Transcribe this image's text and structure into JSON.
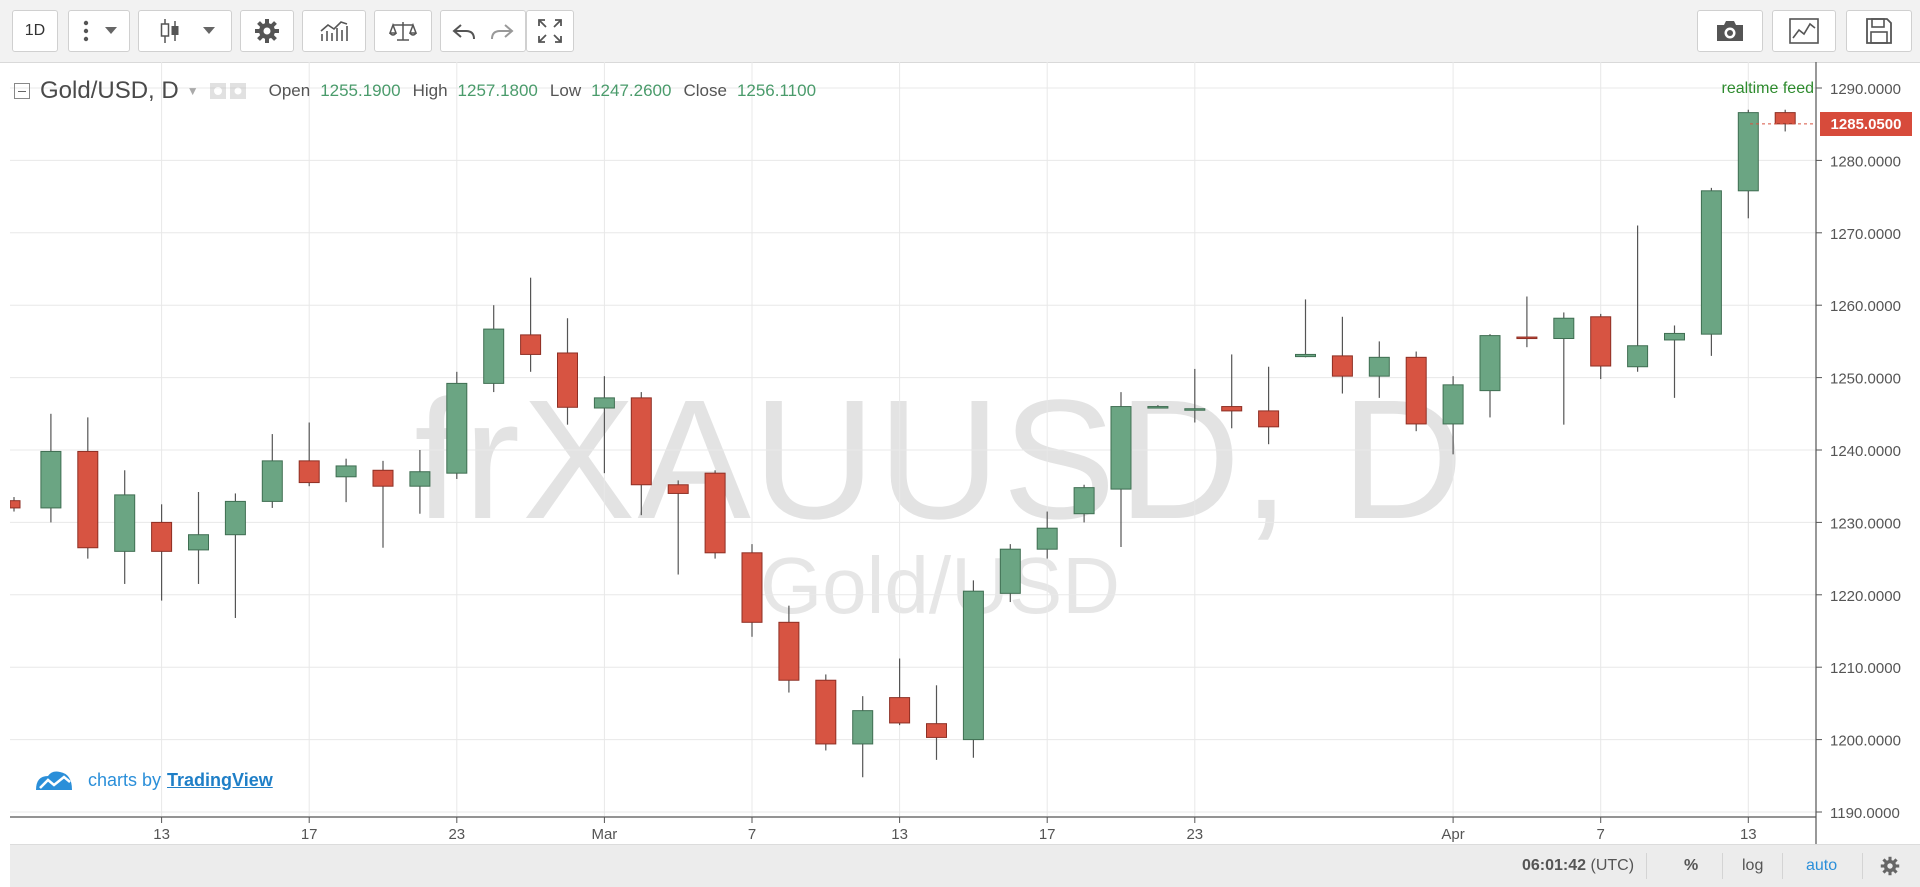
{
  "toolbar": {
    "interval": "1D",
    "more_icon": "vertical-dots-icon",
    "dropdown_icon": "caret-down-icon",
    "candles_icon": "candlestick-icon",
    "settings_icon": "gear-icon",
    "indicators_icon": "indicators-icon",
    "compare_icon": "scale-icon",
    "undo_icon": "undo-icon",
    "redo_icon": "redo-icon",
    "fullscreen_icon": "fullscreen-icon",
    "snapshot_icon": "camera-icon",
    "chart_icon": "line-chart-icon",
    "save_icon": "save-icon"
  },
  "legend": {
    "symbol": "Gold/USD, D",
    "open_label": "Open",
    "open": "1255.1900",
    "high_label": "High",
    "high": "1257.1800",
    "low_label": "Low",
    "low": "1247.2600",
    "close_label": "Close",
    "close": "1256.1100"
  },
  "realtime_label": "realtime feed",
  "last_price": "1285.0500",
  "watermark": {
    "ticker": "frXAUUSD, D",
    "name": "Gold/USD"
  },
  "brand": {
    "prefix": "charts by",
    "name": "TradingView"
  },
  "bottom": {
    "time": "06:01:42",
    "tz": "(UTC)",
    "percent": "%",
    "log": "log",
    "auto": "auto",
    "settings_icon": "gear-icon"
  },
  "colors": {
    "up": "#6ba583",
    "down": "#d75442",
    "accent": "#1f7fc7",
    "realtime": "#2e8b2e",
    "badge": "#d74b3b"
  },
  "chart_data": {
    "type": "candlestick",
    "title": "Gold/USD, D",
    "ylim": [
      1190,
      1292
    ],
    "y_ticks": [
      1190,
      1200,
      1210,
      1220,
      1230,
      1240,
      1250,
      1260,
      1270,
      1280,
      1290
    ],
    "y_tick_labels": [
      "1190.0000",
      "1200.0000",
      "1210.0000",
      "1220.0000",
      "1230.0000",
      "1240.0000",
      "1250.0000",
      "1260.0000",
      "1270.0000",
      "1280.0000",
      "1290.0000"
    ],
    "x_labels": [
      {
        "bar": 4,
        "label": "13"
      },
      {
        "bar": 8,
        "label": "17"
      },
      {
        "bar": 12,
        "label": "23"
      },
      {
        "bar": 16,
        "label": "Mar"
      },
      {
        "bar": 20,
        "label": "7"
      },
      {
        "bar": 24,
        "label": "13"
      },
      {
        "bar": 28,
        "label": "17"
      },
      {
        "bar": 32,
        "label": "23"
      },
      {
        "bar": 39,
        "label": "Apr"
      },
      {
        "bar": 43,
        "label": "7"
      },
      {
        "bar": 47,
        "label": "13"
      }
    ],
    "candles": [
      {
        "o": 1233.0,
        "h": 1233.5,
        "l": 1231.5,
        "c": 1232.0
      },
      {
        "o": 1232.0,
        "h": 1245.0,
        "l": 1230.0,
        "c": 1239.8
      },
      {
        "o": 1239.8,
        "h": 1244.5,
        "l": 1225.0,
        "c": 1226.5
      },
      {
        "o": 1226.0,
        "h": 1237.2,
        "l": 1221.5,
        "c": 1233.8
      },
      {
        "o": 1230.0,
        "h": 1232.5,
        "l": 1219.2,
        "c": 1226.0
      },
      {
        "o": 1226.2,
        "h": 1234.2,
        "l": 1221.5,
        "c": 1228.3
      },
      {
        "o": 1228.3,
        "h": 1234.0,
        "l": 1216.8,
        "c": 1232.9
      },
      {
        "o": 1232.9,
        "h": 1242.2,
        "l": 1232.0,
        "c": 1238.5
      },
      {
        "o": 1238.5,
        "h": 1243.8,
        "l": 1235.0,
        "c": 1235.5
      },
      {
        "o": 1236.3,
        "h": 1238.8,
        "l": 1232.8,
        "c": 1237.8
      },
      {
        "o": 1237.2,
        "h": 1238.5,
        "l": 1226.5,
        "c": 1235.0
      },
      {
        "o": 1235.0,
        "h": 1240.0,
        "l": 1231.2,
        "c": 1237.0
      },
      {
        "o": 1236.8,
        "h": 1250.8,
        "l": 1236.0,
        "c": 1249.2
      },
      {
        "o": 1249.2,
        "h": 1260.0,
        "l": 1248.0,
        "c": 1256.7
      },
      {
        "o": 1255.9,
        "h": 1263.8,
        "l": 1250.8,
        "c": 1253.2
      },
      {
        "o": 1253.4,
        "h": 1258.2,
        "l": 1243.5,
        "c": 1245.9
      },
      {
        "o": 1245.8,
        "h": 1250.2,
        "l": 1236.8,
        "c": 1247.2
      },
      {
        "o": 1247.2,
        "h": 1248.0,
        "l": 1231.0,
        "c": 1235.2
      },
      {
        "o": 1235.2,
        "h": 1235.8,
        "l": 1222.8,
        "c": 1234.0
      },
      {
        "o": 1236.8,
        "h": 1237.2,
        "l": 1225.0,
        "c": 1225.8
      },
      {
        "o": 1225.8,
        "h": 1227.0,
        "l": 1214.2,
        "c": 1216.2
      },
      {
        "o": 1216.2,
        "h": 1218.5,
        "l": 1206.5,
        "c": 1208.2
      },
      {
        "o": 1208.2,
        "h": 1209.0,
        "l": 1198.5,
        "c": 1199.4
      },
      {
        "o": 1199.4,
        "h": 1206.0,
        "l": 1194.8,
        "c": 1204.0
      },
      {
        "o": 1205.8,
        "h": 1211.2,
        "l": 1202.0,
        "c": 1202.3
      },
      {
        "o": 1202.2,
        "h": 1207.5,
        "l": 1197.2,
        "c": 1200.3
      },
      {
        "o": 1200.0,
        "h": 1222.0,
        "l": 1197.5,
        "c": 1220.5
      },
      {
        "o": 1220.2,
        "h": 1227.0,
        "l": 1219.0,
        "c": 1226.3
      },
      {
        "o": 1226.3,
        "h": 1231.5,
        "l": 1225.0,
        "c": 1229.2
      },
      {
        "o": 1231.2,
        "h": 1235.2,
        "l": 1230.0,
        "c": 1234.8
      },
      {
        "o": 1234.6,
        "h": 1248.0,
        "l": 1226.6,
        "c": 1246.0
      },
      {
        "o": 1246.0,
        "h": 1246.2,
        "l": 1245.8,
        "c": 1246.0
      },
      {
        "o": 1245.7,
        "h": 1251.2,
        "l": 1243.8,
        "c": 1245.7
      },
      {
        "o": 1246.0,
        "h": 1253.2,
        "l": 1243.0,
        "c": 1245.4
      },
      {
        "o": 1245.4,
        "h": 1251.5,
        "l": 1240.8,
        "c": 1243.2
      },
      {
        "o": 1252.9,
        "h": 1260.8,
        "l": 1252.8,
        "c": 1253.2
      },
      {
        "o": 1253.0,
        "h": 1258.4,
        "l": 1247.8,
        "c": 1250.2
      },
      {
        "o": 1250.2,
        "h": 1255.0,
        "l": 1247.2,
        "c": 1252.8
      },
      {
        "o": 1252.8,
        "h": 1253.6,
        "l": 1242.6,
        "c": 1243.6
      },
      {
        "o": 1243.6,
        "h": 1250.2,
        "l": 1239.4,
        "c": 1249.0
      },
      {
        "o": 1248.2,
        "h": 1256.0,
        "l": 1244.5,
        "c": 1255.8
      },
      {
        "o": 1255.6,
        "h": 1261.2,
        "l": 1254.2,
        "c": 1255.4
      },
      {
        "o": 1255.4,
        "h": 1259.0,
        "l": 1243.5,
        "c": 1258.2
      },
      {
        "o": 1258.4,
        "h": 1258.8,
        "l": 1249.8,
        "c": 1251.6
      },
      {
        "o": 1251.5,
        "h": 1271.0,
        "l": 1250.8,
        "c": 1254.4
      },
      {
        "o": 1255.2,
        "h": 1257.2,
        "l": 1247.2,
        "c": 1256.1
      },
      {
        "o": 1256.0,
        "h": 1276.2,
        "l": 1253.0,
        "c": 1275.8
      },
      {
        "o": 1275.8,
        "h": 1287.0,
        "l": 1272.0,
        "c": 1286.6
      },
      {
        "o": 1286.6,
        "h": 1287.0,
        "l": 1284.0,
        "c": 1285.05
      }
    ]
  }
}
